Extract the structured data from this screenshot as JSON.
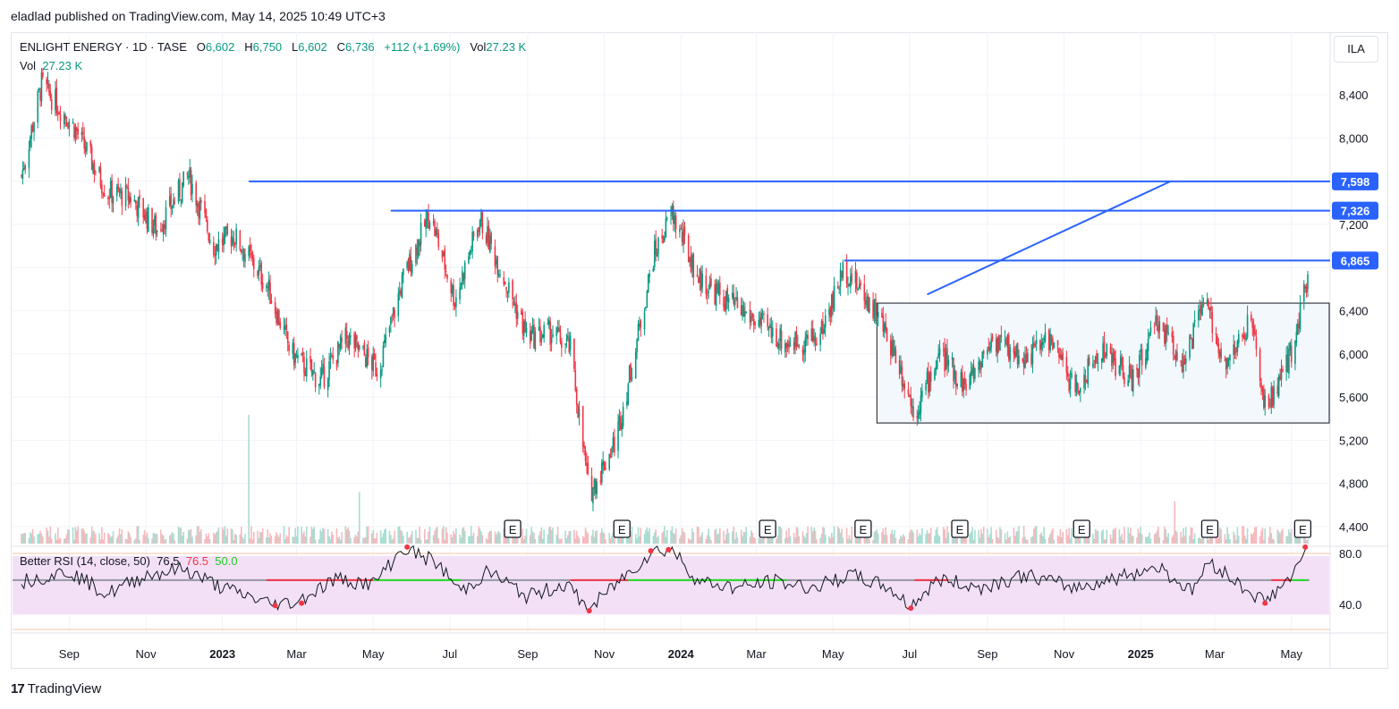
{
  "header": {
    "published": "eladlad published on TradingView.com, May 14, 2025 10:49 UTC+3"
  },
  "legend": {
    "symbol": "ENLIGHT ENERGY · 1D · TASE",
    "o_label": "O",
    "o_value": "6,602",
    "h_label": "H",
    "h_value": "6,750",
    "l_label": "L",
    "l_value": "6,602",
    "c_label": "C",
    "c_value": "6,736",
    "change": "+112 (+1.69%)",
    "vol_label": "Vol",
    "vol_value": "27.23 K",
    "vol2_label": "Vol",
    "vol2_value": "27.23 K"
  },
  "currency": "ILA",
  "rsi": {
    "name": "Better RSI (14, close, 50)",
    "value1": "76.5",
    "value2": "76.5",
    "value3": "50.0"
  },
  "brand": {
    "name": "TradingView",
    "logo_text": "17"
  },
  "colors": {
    "up": "#089981",
    "down": "#f23645",
    "hline": "#2962ff",
    "rsi_zone": "#f3e0f7",
    "rsi_red": "#f23645",
    "rsi_green": "#22dd22"
  },
  "chart_data": {
    "type": "candlestick",
    "symbol": "ENLIGHT ENERGY",
    "interval": "1D",
    "exchange": "TASE",
    "y_ticks": [
      8400,
      8000,
      7600,
      7200,
      6800,
      6400,
      6000,
      5600,
      5200,
      4800,
      4400
    ],
    "y_tick_labels": [
      "8,400",
      "8,000",
      "",
      "7,200",
      "",
      "6,400",
      "6,000",
      "5,600",
      "5,200",
      "4,800",
      "4,400"
    ],
    "ylim": [
      4300,
      8800
    ],
    "x_tick_labels": [
      "Sep",
      "Nov",
      "2023",
      "Mar",
      "May",
      "Jul",
      "Sep",
      "Nov",
      "2024",
      "Mar",
      "May",
      "Jul",
      "Sep",
      "Nov",
      "2025",
      "Mar",
      "May"
    ],
    "x_tick_dates": [
      "2022-09-01",
      "2022-11-01",
      "2023-01-01",
      "2023-03-01",
      "2023-05-01",
      "2023-07-01",
      "2023-09-01",
      "2023-11-01",
      "2024-01-01",
      "2024-03-01",
      "2024-05-01",
      "2024-07-01",
      "2024-09-01",
      "2024-11-01",
      "2025-01-01",
      "2025-03-01",
      "2025-05-01"
    ],
    "x_range": [
      "2022-07-25",
      "2025-05-14"
    ],
    "price_path": [
      [
        "2022-07-25",
        7650
      ],
      [
        "2022-08-10",
        8500
      ],
      [
        "2022-09-05",
        8100
      ],
      [
        "2022-10-01",
        7500
      ],
      [
        "2022-10-20",
        7450
      ],
      [
        "2022-11-10",
        7150
      ],
      [
        "2022-12-05",
        7650
      ],
      [
        "2022-12-25",
        7000
      ],
      [
        "2023-01-10",
        7100
      ],
      [
        "2023-02-05",
        6650
      ],
      [
        "2023-02-25",
        6000
      ],
      [
        "2023-03-20",
        5750
      ],
      [
        "2023-04-10",
        6150
      ],
      [
        "2023-05-05",
        5850
      ],
      [
        "2023-05-25",
        6700
      ],
      [
        "2023-06-15",
        7300
      ],
      [
        "2023-07-05",
        6500
      ],
      [
        "2023-07-25",
        7250
      ],
      [
        "2023-08-15",
        6650
      ],
      [
        "2023-09-01",
        6150
      ],
      [
        "2023-09-20",
        6200
      ],
      [
        "2023-10-05",
        6050
      ],
      [
        "2023-10-20",
        4700
      ],
      [
        "2023-11-10",
        5200
      ],
      [
        "2023-11-25",
        6000
      ],
      [
        "2023-12-10",
        6900
      ],
      [
        "2023-12-25",
        7300
      ],
      [
        "2024-01-15",
        6700
      ],
      [
        "2024-02-05",
        6500
      ],
      [
        "2024-03-01",
        6300
      ],
      [
        "2024-03-25",
        6100
      ],
      [
        "2024-04-20",
        6150
      ],
      [
        "2024-05-10",
        6800
      ],
      [
        "2024-06-01",
        6450
      ],
      [
        "2024-06-20",
        6000
      ],
      [
        "2024-07-05",
        5450
      ],
      [
        "2024-07-25",
        6000
      ],
      [
        "2024-08-15",
        5700
      ],
      [
        "2024-09-05",
        6150
      ],
      [
        "2024-10-01",
        5950
      ],
      [
        "2024-10-20",
        6150
      ],
      [
        "2024-11-10",
        5650
      ],
      [
        "2024-12-01",
        6050
      ],
      [
        "2024-12-25",
        5750
      ],
      [
        "2025-01-15",
        6300
      ],
      [
        "2025-02-05",
        5900
      ],
      [
        "2025-02-20",
        6500
      ],
      [
        "2025-03-10",
        5900
      ],
      [
        "2025-03-30",
        6300
      ],
      [
        "2025-04-10",
        5500
      ],
      [
        "2025-04-25",
        5800
      ],
      [
        "2025-05-05",
        6200
      ],
      [
        "2025-05-14",
        6736
      ]
    ],
    "last_candle": {
      "open": 6602,
      "high": 6750,
      "low": 6602,
      "close": 6736,
      "change": 112,
      "change_pct": 1.69,
      "volume": "27.23 K"
    },
    "horizontal_levels": [
      {
        "price": 7598,
        "label": "7,598",
        "start": "2023-01-22"
      },
      {
        "price": 7326,
        "label": "7,326",
        "start": "2023-05-15"
      },
      {
        "price": 6865,
        "label": "6,865",
        "start": "2024-05-10"
      }
    ],
    "trendline": {
      "from": [
        "2024-07-15",
        6550
      ],
      "to": [
        "2025-01-25",
        7600
      ]
    },
    "range_box": {
      "from": "2024-06-05",
      "to": "2025-05-20",
      "top": 6470,
      "bottom": 5360
    },
    "earnings_dates": [
      "2023-08-20",
      "2023-11-15",
      "2024-03-10",
      "2024-05-25",
      "2024-08-10",
      "2024-11-15",
      "2025-02-25",
      "2025-05-10"
    ],
    "earnings_label": "E",
    "volume_spikes": [
      [
        "2023-01-22",
        1
      ],
      [
        "2023-04-20",
        0.4
      ],
      [
        "2025-01-28",
        0.33
      ]
    ],
    "rsi": {
      "name": "Better RSI (14, close, 50)",
      "value": 76.5,
      "midline": 50,
      "y_ticks": [
        80,
        40
      ],
      "y_tick_labels": [
        "80.0",
        "40.0"
      ],
      "ylim": [
        28,
        86
      ],
      "upper_band": 70,
      "lower_band": 30,
      "path": [
        [
          "2022-07-25",
          50
        ],
        [
          "2022-09-01",
          58
        ],
        [
          "2022-10-01",
          40
        ],
        [
          "2022-11-01",
          55
        ],
        [
          "2022-12-01",
          60
        ],
        [
          "2023-01-01",
          45
        ],
        [
          "2023-02-10",
          32
        ],
        [
          "2023-03-01",
          34
        ],
        [
          "2023-04-01",
          52
        ],
        [
          "2023-05-01",
          48
        ],
        [
          "2023-05-25",
          76
        ],
        [
          "2023-06-20",
          65
        ],
        [
          "2023-07-10",
          42
        ],
        [
          "2023-08-01",
          58
        ],
        [
          "2023-09-01",
          38
        ],
        [
          "2023-10-01",
          48
        ],
        [
          "2023-10-20",
          28
        ],
        [
          "2023-11-10",
          48
        ],
        [
          "2023-12-10",
          74
        ],
        [
          "2023-12-25",
          75
        ],
        [
          "2024-01-15",
          50
        ],
        [
          "2024-02-15",
          45
        ],
        [
          "2024-03-15",
          50
        ],
        [
          "2024-04-15",
          45
        ],
        [
          "2024-05-15",
          55
        ],
        [
          "2024-06-15",
          45
        ],
        [
          "2024-07-01",
          30
        ],
        [
          "2024-07-25",
          52
        ],
        [
          "2024-08-25",
          45
        ],
        [
          "2024-10-01",
          55
        ],
        [
          "2024-11-10",
          45
        ],
        [
          "2024-12-10",
          52
        ],
        [
          "2025-01-15",
          62
        ],
        [
          "2025-02-10",
          42
        ],
        [
          "2025-02-25",
          66
        ],
        [
          "2025-03-20",
          48
        ],
        [
          "2025-04-10",
          34
        ],
        [
          "2025-04-25",
          48
        ],
        [
          "2025-05-05",
          58
        ],
        [
          "2025-05-14",
          76.5
        ]
      ]
    }
  }
}
